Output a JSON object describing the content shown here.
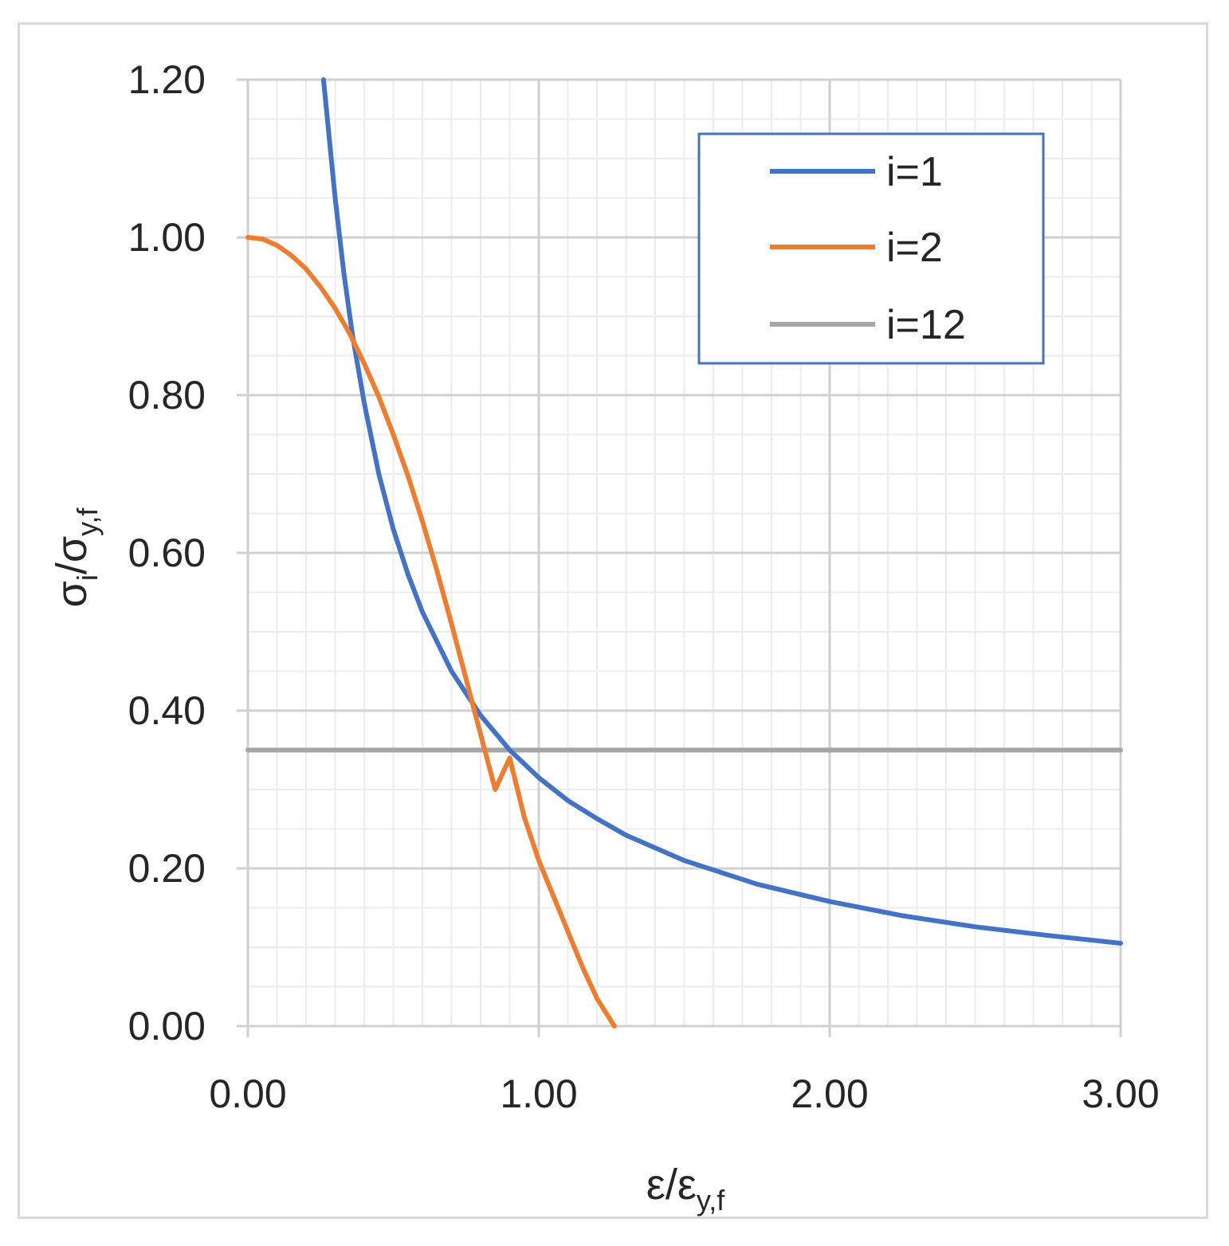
{
  "chart_data": {
    "type": "line",
    "title": "",
    "xlabel": {
      "base": "ε/ε",
      "sub": "y,f"
    },
    "ylabel": {
      "part1": "σ",
      "sub1": "i",
      "part2": "/σ",
      "sub2": "y,f"
    },
    "xlim": [
      0,
      3
    ],
    "ylim": [
      0,
      1.2
    ],
    "x_ticks": [
      "0.00",
      "1.00",
      "2.00",
      "3.00"
    ],
    "y_ticks": [
      "0.00",
      "0.20",
      "0.40",
      "0.60",
      "0.80",
      "1.00",
      "1.20"
    ],
    "grid": true,
    "legend_position": "top-right",
    "series": [
      {
        "name": "i=1",
        "color": "#4472c4",
        "x": [
          0.26,
          0.28,
          0.3,
          0.33,
          0.36,
          0.4,
          0.45,
          0.5,
          0.55,
          0.6,
          0.7,
          0.8,
          0.9,
          1.0,
          1.1,
          1.2,
          1.3,
          1.5,
          1.75,
          2.0,
          2.25,
          2.5,
          2.75,
          3.0
        ],
        "y": [
          1.2,
          1.125,
          1.05,
          0.955,
          0.875,
          0.79,
          0.7,
          0.63,
          0.573,
          0.525,
          0.45,
          0.394,
          0.35,
          0.315,
          0.286,
          0.263,
          0.242,
          0.21,
          0.18,
          0.158,
          0.14,
          0.126,
          0.115,
          0.105
        ]
      },
      {
        "name": "i=2",
        "color": "#ed7d31",
        "x": [
          0.0,
          0.05,
          0.1,
          0.15,
          0.2,
          0.25,
          0.3,
          0.35,
          0.4,
          0.45,
          0.5,
          0.55,
          0.6,
          0.65,
          0.7,
          0.75,
          0.8,
          0.85,
          0.9,
          0.95,
          1.0,
          1.05,
          1.1,
          1.15,
          1.2,
          1.26
        ],
        "y": [
          1.0,
          0.998,
          0.99,
          0.977,
          0.96,
          0.937,
          0.91,
          0.878,
          0.84,
          0.798,
          0.75,
          0.698,
          0.64,
          0.577,
          0.51,
          0.44,
          0.37,
          0.3,
          0.34,
          0.265,
          0.21,
          0.165,
          0.12,
          0.075,
          0.035,
          0.0
        ]
      },
      {
        "name": "i=12",
        "color": "#a5a5a5",
        "x": [
          0.0,
          3.0
        ],
        "y": [
          0.35,
          0.35
        ]
      }
    ]
  }
}
